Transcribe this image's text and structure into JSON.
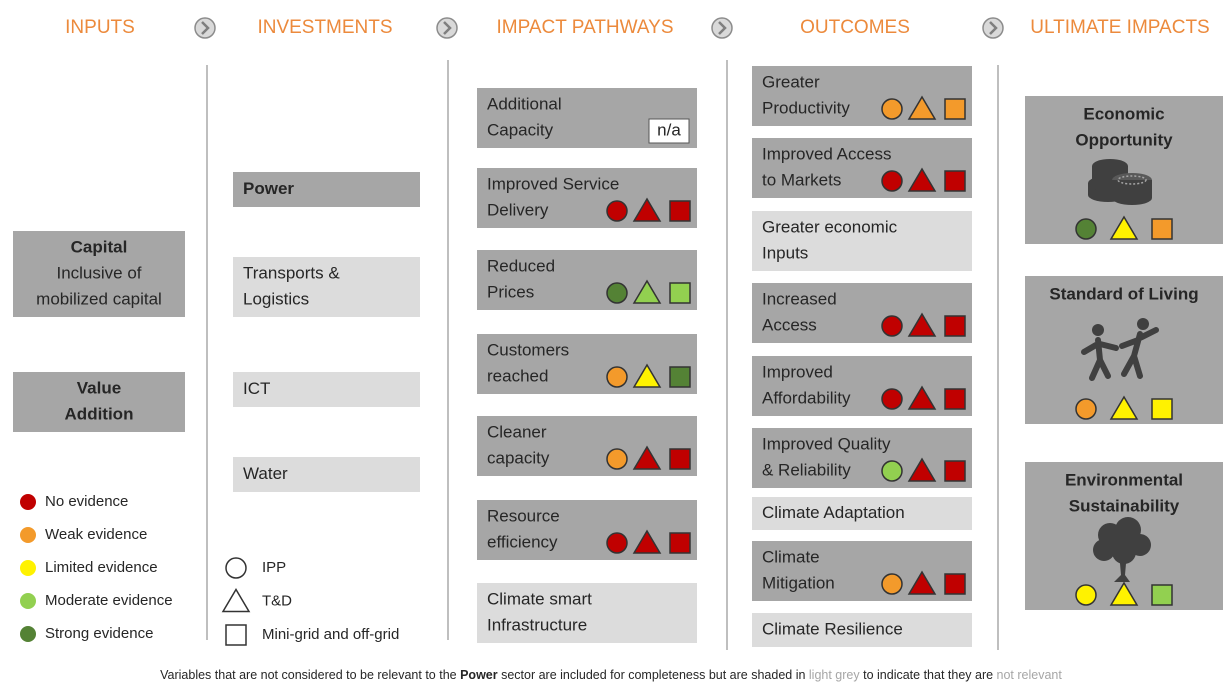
{
  "headers": [
    "INPUTS",
    "INVESTMENTS",
    "IMPACT PATHWAYS",
    "OUTCOMES",
    "ULTIMATE IMPACTS"
  ],
  "inputs": [
    {
      "title": [
        "Capital"
      ],
      "lines": [
        "Inclusive of",
        "mobilized capital"
      ]
    },
    {
      "title": [
        "Value",
        "Addition"
      ],
      "lines": []
    }
  ],
  "investments": [
    {
      "lines": [
        "Power"
      ],
      "relevant": true
    },
    {
      "lines": [
        "Transports &",
        "Logistics"
      ],
      "relevant": false
    },
    {
      "lines": [
        "ICT"
      ],
      "relevant": false
    },
    {
      "lines": [
        "Water"
      ],
      "relevant": false
    }
  ],
  "pathways": [
    {
      "lines": [
        "Additional",
        "Capacity"
      ],
      "relevant": true,
      "note": "n/a",
      "marks": []
    },
    {
      "lines": [
        "Improved Service",
        "Delivery"
      ],
      "relevant": true,
      "marks": [
        "#c00000",
        "#c00000",
        "#c00000"
      ]
    },
    {
      "lines": [
        "Reduced",
        "Prices"
      ],
      "relevant": true,
      "marks": [
        "#548235",
        "#92d050",
        "#92d050"
      ]
    },
    {
      "lines": [
        "Customers",
        "reached"
      ],
      "relevant": true,
      "marks": [
        "#f39a2b",
        "#fff200",
        "#548235"
      ]
    },
    {
      "lines": [
        "Cleaner",
        "capacity"
      ],
      "relevant": true,
      "marks": [
        "#f39a2b",
        "#c00000",
        "#c00000"
      ]
    },
    {
      "lines": [
        "Resource",
        "efficiency"
      ],
      "relevant": true,
      "marks": [
        "#c00000",
        "#c00000",
        "#c00000"
      ]
    },
    {
      "lines": [
        "Climate smart",
        "Infrastructure"
      ],
      "relevant": false,
      "marks": []
    }
  ],
  "outcomes": [
    {
      "lines": [
        "Greater",
        "Productivity"
      ],
      "relevant": true,
      "marks": [
        "#f39a2b",
        "#f39a2b",
        "#f39a2b"
      ]
    },
    {
      "lines": [
        "Improved Access",
        "to Markets"
      ],
      "relevant": true,
      "marks": [
        "#c00000",
        "#c00000",
        "#c00000"
      ]
    },
    {
      "lines": [
        "Greater economic",
        "Inputs"
      ],
      "relevant": false,
      "marks": []
    },
    {
      "lines": [
        "Increased",
        "Access"
      ],
      "relevant": true,
      "marks": [
        "#c00000",
        "#c00000",
        "#c00000"
      ]
    },
    {
      "lines": [
        "Improved",
        "Affordability"
      ],
      "relevant": true,
      "marks": [
        "#c00000",
        "#c00000",
        "#c00000"
      ]
    },
    {
      "lines": [
        "Improved Quality",
        "& Reliability"
      ],
      "relevant": true,
      "marks": [
        "#92d050",
        "#c00000",
        "#c00000"
      ]
    },
    {
      "lines": [
        "Climate Adaptation"
      ],
      "relevant": false,
      "marks": []
    },
    {
      "lines": [
        "Climate",
        "Mitigation"
      ],
      "relevant": true,
      "marks": [
        "#f39a2b",
        "#c00000",
        "#c00000"
      ]
    },
    {
      "lines": [
        "Climate Resilience"
      ],
      "relevant": false,
      "marks": []
    }
  ],
  "impacts": [
    {
      "title": [
        "Economic",
        "Opportunity"
      ],
      "marks": [
        "#548235",
        "#fff200",
        "#f39a2b"
      ]
    },
    {
      "title": [
        "Standard of Living"
      ],
      "marks": [
        "#f39a2b",
        "#fff200",
        "#fff200"
      ]
    },
    {
      "title": [
        "Environmental",
        "Sustainability"
      ],
      "marks": [
        "#fff200",
        "#fff200",
        "#92d050"
      ]
    }
  ],
  "legend": {
    "evidence": [
      {
        "label": "No evidence",
        "color": "#c00000"
      },
      {
        "label": "Weak evidence",
        "color": "#f39a2b"
      },
      {
        "label": "Limited evidence",
        "color": "#fff200"
      },
      {
        "label": "Moderate evidence",
        "color": "#92d050"
      },
      {
        "label": "Strong evidence",
        "color": "#548235"
      }
    ],
    "shapes": [
      "IPP",
      "T&D",
      "Mini-grid and off-grid"
    ]
  },
  "footer": [
    "Variables that are not considered to be relevant to the ",
    "Power",
    " sector are included for completeness but are shaded in ",
    "light grey",
    " to indicate that they are ",
    "not relevant"
  ]
}
